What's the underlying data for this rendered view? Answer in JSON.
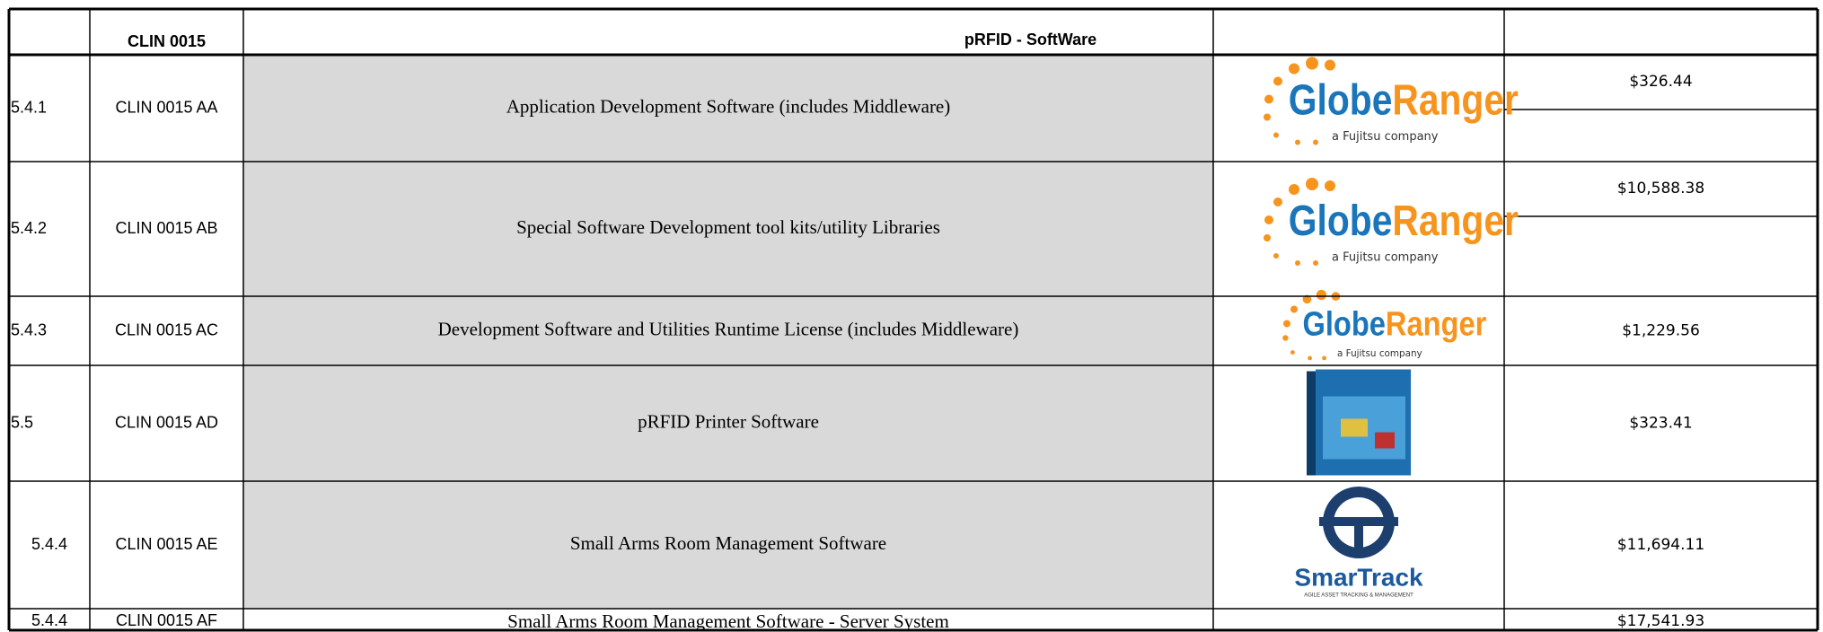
{
  "header": {
    "cells": [
      "CLIN 0015",
      "pRFID - SoftWare"
    ]
  },
  "table": {
    "rows": [
      {
        "id": "5.4.1",
        "clin": "CLIN 0015 AA",
        "description": "Application Development Software (includes Middleware)",
        "logo": {
          "kind": "globeranger",
          "parts": [
            "Globe",
            "Ranger"
          ],
          "tagline": "a Fujitsu company"
        },
        "price": "$326.44"
      },
      {
        "id": "5.4.2",
        "clin": "CLIN 0015 AB",
        "description": "Special Software Development tool kits/utility Libraries",
        "logo": {
          "kind": "globeranger",
          "parts": [
            "Globe",
            "Ranger"
          ],
          "tagline": "a Fujitsu company"
        },
        "price": "$10,588.38"
      },
      {
        "id": "5.4.3",
        "clin": "CLIN 0015 AC",
        "description": "Development Software and Utilities Runtime License (includes Middleware)",
        "logo": {
          "kind": "globeranger",
          "parts": [
            "Globe",
            "Ranger"
          ],
          "tagline": "a Fujitsu company"
        },
        "price": "$1,229.56"
      },
      {
        "id": "5.5",
        "clin": "CLIN 0015 AD",
        "description": "pRFID Printer Software",
        "logo": {
          "kind": "box"
        },
        "price": "$323.41"
      },
      {
        "id": "5.4.4",
        "clin": "CLIN 0015 AE",
        "description": "Small Arms Room Management Software",
        "logo": {
          "kind": "smartrack",
          "name": "SmarTrack",
          "tagline": "AGILE ASSET TRACKING & MANAGEMENT"
        },
        "price": "$11,694.11"
      },
      {
        "id": "5.4.4",
        "clin": "CLIN 0015 AF",
        "description": "Small Arms Room Management Software - Server System",
        "logo": {
          "kind": "none"
        },
        "price": "$17,541.93"
      }
    ]
  }
}
